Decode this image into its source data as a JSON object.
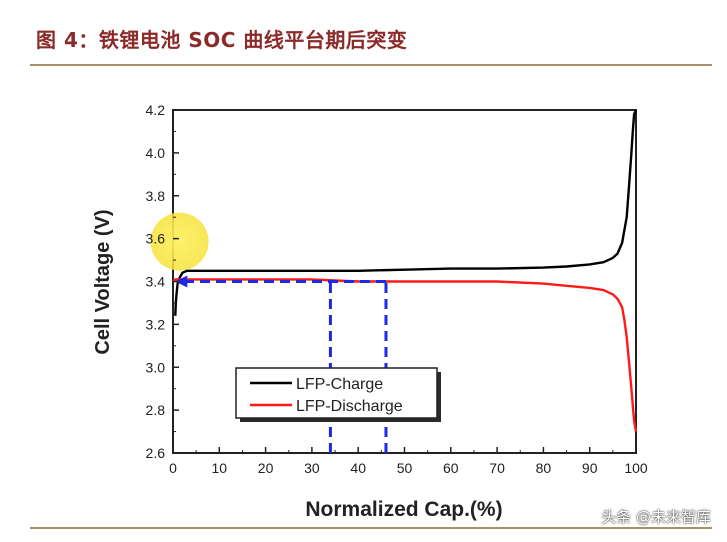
{
  "figure_title": "图 4：铁锂电池 SOC 曲线平台期后突变",
  "watermark": "头条 @未来智库",
  "colors": {
    "title": "#8c2a2a",
    "rule": "#a8906a",
    "charge": "#000000",
    "discharge": "#ff1a1a",
    "guide": "#1e28e6",
    "highlight": "#ffee33"
  },
  "chart_data": {
    "type": "line",
    "xlabel": "Normalized Cap.(%)",
    "ylabel": "Cell Voltage (V)",
    "xlim": [
      0,
      100
    ],
    "ylim": [
      2.6,
      4.2
    ],
    "xticks": [
      "0",
      "10",
      "20",
      "30",
      "40",
      "50",
      "60",
      "70",
      "80",
      "90",
      "100"
    ],
    "yticks": [
      "2.6",
      "2.8",
      "3.0",
      "3.2",
      "3.4",
      "3.6",
      "3.8",
      "4.0",
      "4.2"
    ],
    "legend": {
      "position": "lower-center",
      "entries": [
        "LFP-Charge",
        "LFP-Discharge"
      ]
    },
    "series": [
      {
        "name": "LFP-Charge",
        "x": [
          0.5,
          0.6,
          0.8,
          1,
          1.5,
          2,
          3,
          5,
          10,
          20,
          30,
          40,
          50,
          60,
          70,
          80,
          85,
          90,
          93,
          95,
          96,
          97,
          98,
          98.5,
          99,
          99.3,
          99.6,
          100
        ],
        "y": [
          3.24,
          3.3,
          3.35,
          3.39,
          3.42,
          3.44,
          3.45,
          3.45,
          3.45,
          3.45,
          3.45,
          3.45,
          3.455,
          3.46,
          3.46,
          3.465,
          3.47,
          3.48,
          3.49,
          3.51,
          3.53,
          3.58,
          3.7,
          3.85,
          4.0,
          4.1,
          4.18,
          4.2
        ]
      },
      {
        "name": "LFP-Discharge",
        "x": [
          0,
          0.5,
          1,
          3,
          5,
          10,
          20,
          30,
          40,
          50,
          60,
          70,
          80,
          85,
          90,
          93,
          95,
          96,
          97,
          97.5,
          98,
          98.5,
          99,
          99.3,
          99.6,
          100
        ],
        "y": [
          3.4,
          3.41,
          3.41,
          3.41,
          3.41,
          3.41,
          3.41,
          3.41,
          3.4,
          3.4,
          3.4,
          3.4,
          3.39,
          3.38,
          3.37,
          3.36,
          3.34,
          3.32,
          3.28,
          3.22,
          3.14,
          3.02,
          2.9,
          2.82,
          2.75,
          2.7
        ]
      }
    ],
    "annotations": [
      {
        "type": "highlight-circle",
        "x": 1,
        "y": 3.6
      },
      {
        "type": "vertical-dashed-line",
        "x": 34,
        "y_from": 2.6,
        "y_to": 3.4
      },
      {
        "type": "vertical-dashed-line",
        "x": 46,
        "y_from": 2.6,
        "y_to": 3.4
      },
      {
        "type": "horizontal-dashed-arrow",
        "from_x": 46,
        "to_x": 0.5,
        "y": 3.4
      }
    ]
  }
}
